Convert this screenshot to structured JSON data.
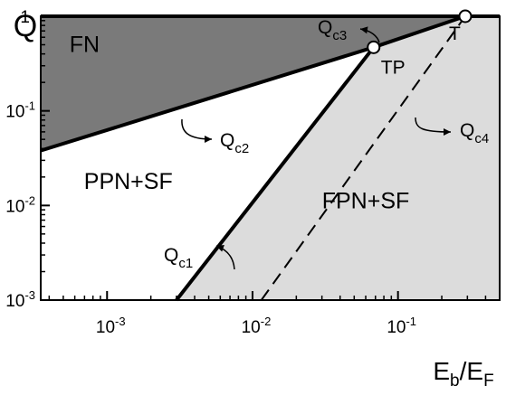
{
  "chart_data": {
    "type": "area",
    "xlabel": {
      "main": "E",
      "sub1": "b",
      "sep": "/E",
      "sub2": "F"
    },
    "ylabel": "Q",
    "xscale": "log",
    "yscale": "log",
    "xlim": [
      0.00035,
      0.5
    ],
    "ylim": [
      0.001,
      1
    ],
    "x_ticks": [
      {
        "value": 0.001,
        "base": "10",
        "exp": "-3"
      },
      {
        "value": 0.01,
        "base": "10",
        "exp": "-2"
      },
      {
        "value": 0.1,
        "base": "10",
        "exp": "-1"
      }
    ],
    "y_ticks": [
      {
        "value": 0.001,
        "base": "10",
        "exp": "-3"
      },
      {
        "value": 0.01,
        "base": "10",
        "exp": "-2"
      },
      {
        "value": 0.1,
        "base": "10",
        "exp": "-1"
      },
      {
        "value": 1,
        "base": "1",
        "exp": ""
      }
    ],
    "regions": [
      {
        "label": "FN",
        "color": "#7a7a7a",
        "label_pos": [
          0.0007,
          0.42
        ]
      },
      {
        "label": "PPN+SF",
        "color": "#ffffff",
        "label_pos": [
          0.0014,
          0.015
        ]
      },
      {
        "label": "FPN+SF",
        "color": "#dcdcdc",
        "label_pos": [
          0.06,
          0.0093
        ]
      }
    ],
    "curves": [
      {
        "name": "Qc1",
        "label_main": "Q",
        "label_sub": "c1",
        "style": "solid",
        "width": 4,
        "points": [
          [
            0.003,
            0.001
          ],
          [
            0.068,
            0.47
          ]
        ]
      },
      {
        "name": "Qc2",
        "label_main": "Q",
        "label_sub": "c2",
        "style": "solid",
        "width": 4,
        "points": [
          [
            0.00035,
            0.038
          ],
          [
            0.068,
            0.47
          ]
        ]
      },
      {
        "name": "Qc3",
        "label_main": "Q",
        "label_sub": "c3",
        "style": "solid",
        "width": 4,
        "points": [
          [
            0.068,
            0.47
          ],
          [
            0.29,
            1
          ]
        ]
      },
      {
        "name": "Qc4",
        "label_main": "Q",
        "label_sub": "c4",
        "style": "dashed",
        "width": 2,
        "points": [
          [
            0.0115,
            0.001
          ],
          [
            0.29,
            1
          ]
        ]
      },
      {
        "name": "Q=1",
        "style": "solid",
        "width": 4,
        "points": [
          [
            0.00035,
            1
          ],
          [
            0.5,
            1
          ]
        ]
      }
    ],
    "special_points": [
      {
        "label": "TP",
        "x": 0.068,
        "y": 0.47
      },
      {
        "label": "T",
        "x": 0.29,
        "y": 1
      }
    ]
  }
}
